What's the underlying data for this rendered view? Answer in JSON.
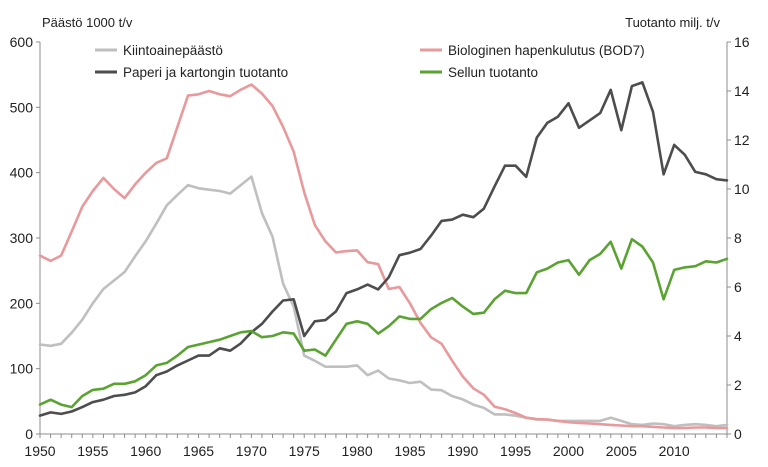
{
  "chart_data": {
    "type": "line",
    "title": "",
    "left_axis_title": "Päästö 1000 t/v",
    "right_axis_title": "Tuotanto milj. t/v",
    "left_ylim": [
      0,
      600
    ],
    "left_ticks": [
      "0",
      "100",
      "200",
      "300",
      "400",
      "500",
      "600"
    ],
    "right_ylim": [
      0,
      16
    ],
    "right_ticks": [
      "0",
      "2",
      "4",
      "6",
      "8",
      "10",
      "12",
      "14",
      "16"
    ],
    "xlim": [
      1950,
      2015
    ],
    "x_ticks": [
      "1950",
      "1955",
      "1960",
      "1965",
      "1970",
      "1975",
      "1980",
      "1985",
      "1990",
      "1995",
      "2000",
      "2005",
      "2010"
    ],
    "grid": false,
    "legend_position": "top",
    "series": [
      {
        "name": "Kiintoainepäästö",
        "axis": "left",
        "color": "#bfbfbf",
        "x": [
          1950,
          1951,
          1952,
          1953,
          1954,
          1955,
          1956,
          1957,
          1958,
          1959,
          1960,
          1961,
          1962,
          1963,
          1964,
          1965,
          1966,
          1967,
          1968,
          1969,
          1970,
          1971,
          1972,
          1973,
          1974,
          1975,
          1976,
          1977,
          1978,
          1979,
          1980,
          1981,
          1982,
          1983,
          1984,
          1985,
          1986,
          1987,
          1988,
          1989,
          1990,
          1991,
          1992,
          1993,
          1994,
          1995,
          1996,
          1997,
          1998,
          1999,
          2000,
          2001,
          2002,
          2003,
          2004,
          2005,
          2006,
          2007,
          2008,
          2009,
          2010,
          2011,
          2012,
          2013,
          2014,
          2015
        ],
        "values": [
          137,
          135,
          138,
          155,
          175,
          200,
          222,
          235,
          248,
          272,
          295,
          322,
          350,
          366,
          381,
          376,
          374,
          372,
          368,
          381,
          394,
          338,
          302,
          230,
          195,
          120,
          112,
          103,
          103,
          103,
          105,
          90,
          97,
          85,
          82,
          78,
          80,
          68,
          67,
          58,
          53,
          45,
          40,
          30,
          30,
          28,
          25,
          22,
          22,
          20,
          20,
          20,
          20,
          20,
          25,
          20,
          15,
          14,
          16,
          15,
          12,
          14,
          15,
          14,
          12,
          14
        ]
      },
      {
        "name": "Biologinen hapenkulutus (BOD7)",
        "axis": "left",
        "color": "#e8999c",
        "x": [
          1950,
          1951,
          1952,
          1953,
          1954,
          1955,
          1956,
          1957,
          1958,
          1959,
          1960,
          1961,
          1962,
          1963,
          1964,
          1965,
          1966,
          1967,
          1968,
          1969,
          1970,
          1971,
          1972,
          1973,
          1974,
          1975,
          1976,
          1977,
          1978,
          1979,
          1980,
          1981,
          1982,
          1983,
          1984,
          1985,
          1986,
          1987,
          1988,
          1989,
          1990,
          1991,
          1992,
          1993,
          1994,
          1995,
          1996,
          1997,
          1998,
          1999,
          2000,
          2001,
          2002,
          2003,
          2004,
          2005,
          2006,
          2007,
          2008,
          2009,
          2010,
          2011,
          2012,
          2013,
          2014,
          2015
        ],
        "values": [
          273,
          265,
          273,
          310,
          348,
          372,
          392,
          375,
          361,
          382,
          400,
          415,
          422,
          470,
          518,
          520,
          525,
          520,
          517,
          527,
          535,
          521,
          502,
          470,
          432,
          370,
          320,
          295,
          278,
          280,
          281,
          263,
          260,
          222,
          225,
          200,
          170,
          148,
          138,
          112,
          88,
          70,
          60,
          42,
          38,
          32,
          25,
          23,
          22,
          20,
          18,
          17,
          16,
          15,
          14,
          13,
          12,
          12,
          11,
          10,
          9,
          9,
          10,
          10,
          9,
          9
        ]
      },
      {
        "name": "Paperi ja kartongin tuotanto",
        "axis": "right",
        "color": "#4d4d4d",
        "x": [
          1950,
          1951,
          1952,
          1953,
          1954,
          1955,
          1956,
          1957,
          1958,
          1959,
          1960,
          1961,
          1962,
          1963,
          1964,
          1965,
          1966,
          1967,
          1968,
          1969,
          1970,
          1971,
          1972,
          1973,
          1974,
          1975,
          1976,
          1977,
          1978,
          1979,
          1980,
          1981,
          1982,
          1983,
          1984,
          1985,
          1986,
          1987,
          1988,
          1989,
          1990,
          1991,
          1992,
          1993,
          1994,
          1995,
          1996,
          1997,
          1998,
          1999,
          2000,
          2001,
          2002,
          2003,
          2004,
          2005,
          2006,
          2007,
          2008,
          2009,
          2010,
          2011,
          2012,
          2013,
          2014,
          2015
        ],
        "values": [
          0.75,
          0.88,
          0.82,
          0.92,
          1.1,
          1.3,
          1.4,
          1.55,
          1.6,
          1.7,
          1.95,
          2.4,
          2.55,
          2.8,
          3.0,
          3.2,
          3.2,
          3.5,
          3.4,
          3.7,
          4.15,
          4.5,
          5.0,
          5.45,
          5.5,
          4.0,
          4.6,
          4.65,
          5.0,
          5.75,
          5.9,
          6.1,
          5.9,
          6.4,
          7.3,
          7.4,
          7.55,
          8.1,
          8.7,
          8.75,
          8.95,
          8.85,
          9.2,
          10.1,
          10.95,
          10.95,
          10.5,
          12.1,
          12.7,
          12.95,
          13.5,
          12.5,
          12.8,
          13.1,
          14.05,
          12.4,
          14.2,
          14.35,
          13.15,
          10.6,
          11.8,
          11.4,
          10.7,
          10.6,
          10.4,
          10.35
        ]
      },
      {
        "name": "Sellun tuotanto",
        "axis": "right",
        "color": "#5aa332",
        "x": [
          1950,
          1951,
          1952,
          1953,
          1954,
          1955,
          1956,
          1957,
          1958,
          1959,
          1960,
          1961,
          1962,
          1963,
          1964,
          1965,
          1966,
          1967,
          1968,
          1969,
          1970,
          1971,
          1972,
          1973,
          1974,
          1975,
          1976,
          1977,
          1978,
          1979,
          1980,
          1981,
          1982,
          1983,
          1984,
          1985,
          1986,
          1987,
          1988,
          1989,
          1990,
          1991,
          1992,
          1993,
          1994,
          1995,
          1996,
          1997,
          1998,
          1999,
          2000,
          2001,
          2002,
          2003,
          2004,
          2005,
          2006,
          2007,
          2008,
          2009,
          2010,
          2011,
          2012,
          2013,
          2014,
          2015
        ],
        "values": [
          1.2,
          1.4,
          1.2,
          1.1,
          1.55,
          1.8,
          1.85,
          2.05,
          2.05,
          2.15,
          2.4,
          2.8,
          2.9,
          3.2,
          3.55,
          3.65,
          3.75,
          3.85,
          4.0,
          4.15,
          4.2,
          3.95,
          4.0,
          4.15,
          4.1,
          3.4,
          3.45,
          3.2,
          3.85,
          4.5,
          4.6,
          4.5,
          4.1,
          4.4,
          4.8,
          4.7,
          4.7,
          5.1,
          5.35,
          5.55,
          5.2,
          4.9,
          4.95,
          5.5,
          5.85,
          5.75,
          5.75,
          6.6,
          6.75,
          7.0,
          7.1,
          6.5,
          7.1,
          7.35,
          7.85,
          6.75,
          7.95,
          7.65,
          7.0,
          5.5,
          6.7,
          6.8,
          6.85,
          7.05,
          7.0,
          7.15
        ]
      }
    ]
  }
}
